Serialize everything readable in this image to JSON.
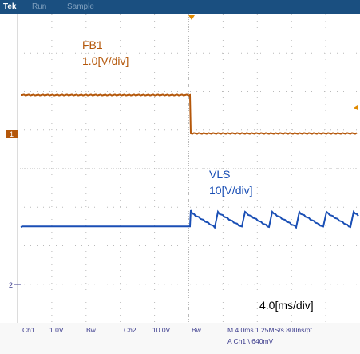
{
  "topbar": {
    "brand": "Tek",
    "mode": "Run",
    "acq": "Sample"
  },
  "colors": {
    "ch1": "#b4570a",
    "ch2": "#1a4fb5",
    "grid": "#b9b9b9",
    "status_text": "#3a3a8c",
    "topbar": "#1a4f80"
  },
  "markers": {
    "ch1_ground": "1",
    "ch2_ground": "2"
  },
  "labels": {
    "fb1_name": "FB1",
    "fb1_scale": "1.0[V/div]",
    "vls_name": "VLS",
    "vls_scale": "10[V/div]",
    "timebase": "4.0[ms/div]"
  },
  "status": {
    "ch1": "Ch1",
    "ch1_scale": "1.0V",
    "ch1_bw": "Bw",
    "ch2": "Ch2",
    "ch2_scale": "10.0V",
    "ch2_bw": "Bw",
    "horizontal": "M 4.0ms 1.25MS/s  800ns/pt",
    "trigger": "A  Ch1  \\  640mV"
  }
}
